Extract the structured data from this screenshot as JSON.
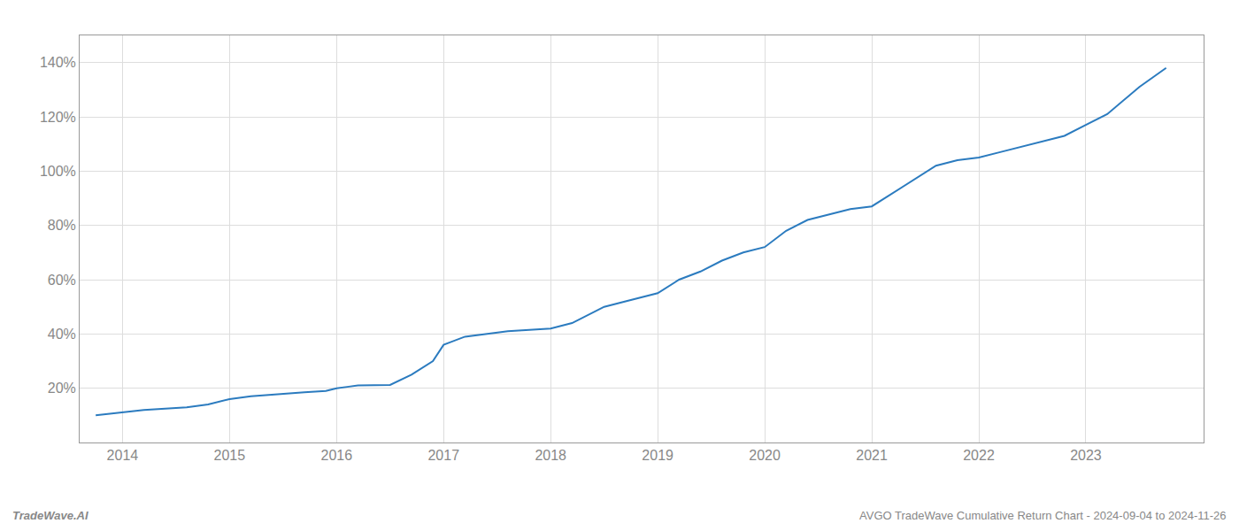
{
  "chart_data": {
    "type": "line",
    "title": "AVGO TradeWave Cumulative Return Chart - 2024-09-04 to 2024-11-26",
    "annotations": [
      "TradeWave.AI"
    ],
    "color": "#2b7bbf",
    "x": [
      2013.75,
      2014.0,
      2014.2,
      2014.4,
      2014.6,
      2014.8,
      2015.0,
      2015.2,
      2015.5,
      2015.7,
      2015.9,
      2016.0,
      2016.1,
      2016.2,
      2016.5,
      2016.7,
      2016.9,
      2017.0,
      2017.2,
      2017.4,
      2017.6,
      2017.8,
      2018.0,
      2018.2,
      2018.5,
      2018.7,
      2018.9,
      2019.0,
      2019.2,
      2019.4,
      2019.6,
      2019.8,
      2020.0,
      2020.2,
      2020.4,
      2020.6,
      2020.8,
      2021.0,
      2021.2,
      2021.4,
      2021.6,
      2021.8,
      2022.0,
      2022.2,
      2022.4,
      2022.6,
      2022.8,
      2023.0,
      2023.2,
      2023.5,
      2023.75
    ],
    "values": [
      10,
      11,
      12,
      12.5,
      13,
      14,
      16,
      17,
      18,
      18.5,
      19,
      20,
      20.5,
      21,
      21.2,
      25,
      30,
      36,
      39,
      40,
      41,
      41.5,
      42,
      44,
      50,
      52,
      54,
      55,
      60,
      63,
      67,
      70,
      72,
      78,
      82,
      84,
      86,
      87,
      92,
      97,
      102,
      104,
      105,
      107,
      109,
      111,
      113,
      117,
      121,
      131,
      138
    ],
    "xlim": [
      2013.6,
      2024.1
    ],
    "xticks": [
      2014,
      2015,
      2016,
      2017,
      2018,
      2019,
      2020,
      2021,
      2022,
      2023
    ],
    "ylim": [
      0,
      150
    ],
    "yticks": [
      {
        "value": 20,
        "label": "20%"
      },
      {
        "value": 40,
        "label": "40%"
      },
      {
        "value": 60,
        "label": "60%"
      },
      {
        "value": 80,
        "label": "80%"
      },
      {
        "value": 100,
        "label": "100%"
      },
      {
        "value": 120,
        "label": "120%"
      },
      {
        "value": 140,
        "label": "140%"
      }
    ],
    "grid": true
  }
}
